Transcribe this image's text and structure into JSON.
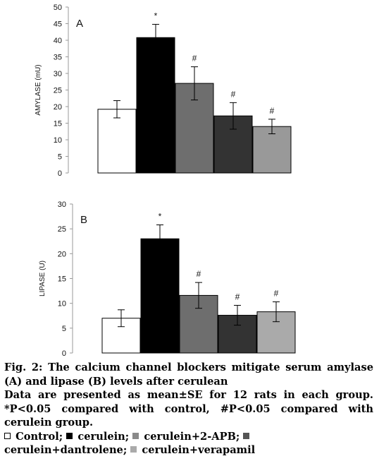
{
  "chart_data": [
    {
      "type": "bar",
      "panel_label": "A",
      "ylabel": "AMYLASE (mU)",
      "ylim": [
        0,
        50
      ],
      "yticks": [
        0,
        5,
        10,
        15,
        20,
        25,
        30,
        35,
        40,
        45,
        50
      ],
      "grid": false,
      "bars": [
        {
          "value": 19.2,
          "error": 2.6,
          "color": "#ffffff",
          "annotation": ""
        },
        {
          "value": 40.8,
          "error": 4.0,
          "color": "#000000",
          "annotation": "*"
        },
        {
          "value": 27.0,
          "error": 5.0,
          "color": "#6e6e6e",
          "annotation": "#"
        },
        {
          "value": 17.2,
          "error": 4.0,
          "color": "#333333",
          "annotation": "#"
        },
        {
          "value": 14.0,
          "error": 2.2,
          "color": "#999999",
          "annotation": "#"
        }
      ]
    },
    {
      "type": "bar",
      "panel_label": "B",
      "ylabel": "LIPASE (U)",
      "ylim": [
        0,
        30
      ],
      "yticks": [
        0,
        5,
        10,
        15,
        20,
        25,
        30
      ],
      "grid": false,
      "bars": [
        {
          "value": 7.0,
          "error": 1.7,
          "color": "#ffffff",
          "annotation": ""
        },
        {
          "value": 23.0,
          "error": 2.8,
          "color": "#000000",
          "annotation": "*"
        },
        {
          "value": 11.6,
          "error": 2.6,
          "color": "#6e6e6e",
          "annotation": "#"
        },
        {
          "value": 7.6,
          "error": 2.0,
          "color": "#333333",
          "annotation": "#"
        },
        {
          "value": 8.3,
          "error": 2.0,
          "color": "#aaaaaa",
          "annotation": "#"
        }
      ]
    }
  ],
  "caption": {
    "title": "Fig. 2: The calcium channel blockers mitigate serum amylase (A) and lipase (B) levels after cerulean",
    "body": "Data are presented as mean±SE for 12 rats in each group. *P<0.05 compared with control, #P<0.05 compared with cerulein group.",
    "legend": [
      {
        "label": "Control;",
        "color": "#ffffff"
      },
      {
        "label": "cerulein;",
        "color": "#000000"
      },
      {
        "label": "cerulein+2-APB;",
        "color": "#8a8a8a"
      },
      {
        "label": "cerulein+dantrolene;",
        "color": "#555555"
      },
      {
        "label": "cerulein+verapamil",
        "color": "#aaaaaa"
      }
    ]
  }
}
